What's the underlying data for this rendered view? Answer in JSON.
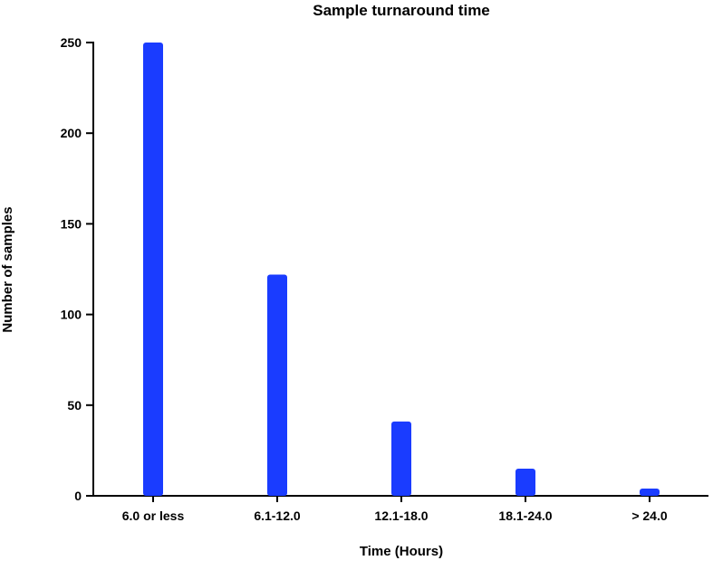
{
  "chart_data": {
    "type": "bar",
    "title": "Sample turnaround time",
    "xlabel": "Time (Hours)",
    "ylabel": "Number of samples",
    "categories": [
      "6.0 or less",
      "6.1-12.0",
      "12.1-18.0",
      "18.1-24.0",
      "> 24.0"
    ],
    "values": [
      250,
      122,
      41,
      15,
      4
    ],
    "ylim": [
      0,
      250
    ],
    "yticks": [
      0,
      50,
      100,
      150,
      200,
      250
    ],
    "bar_color": "#1a3cff",
    "grid": false,
    "legend": "none"
  }
}
